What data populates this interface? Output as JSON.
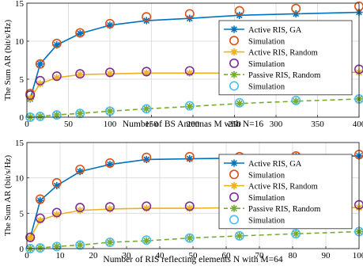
{
  "chart_data": [
    {
      "type": "line",
      "xlabel": "Number of BS Antennas M with N=16",
      "ylabel": "The Sum AR (bit/s/Hz)",
      "xlim": [
        0,
        400
      ],
      "ylim": [
        0,
        15
      ],
      "xticks": [
        0,
        50,
        100,
        150,
        200,
        250,
        300,
        350,
        400
      ],
      "yticks": [
        0,
        5,
        10,
        15
      ],
      "grid": true,
      "legend_position": "right",
      "series": [
        {
          "name": "Active RIS, GA",
          "color": "#0072BD",
          "marker": "asterisk",
          "style": "solid",
          "x": [
            4,
            16,
            36,
            64,
            100,
            144,
            196,
            256,
            324,
            400
          ],
          "y": [
            2.4,
            7.0,
            9.5,
            11.0,
            12.1,
            12.7,
            13.0,
            13.4,
            13.6,
            13.8
          ]
        },
        {
          "name": "Simulation",
          "color": "#D95319",
          "marker": "circle",
          "style": "none",
          "x": [
            4,
            16,
            36,
            64,
            100,
            144,
            196,
            256,
            324,
            400
          ],
          "y": [
            3.1,
            7.0,
            9.7,
            11.1,
            12.3,
            13.2,
            13.6,
            14.0,
            14.3,
            14.6
          ]
        },
        {
          "name": "Active RIS, Random",
          "color": "#EDB120",
          "marker": "asterisk",
          "style": "solid",
          "x": [
            4,
            16,
            36,
            64,
            100,
            144,
            196,
            256,
            324,
            400
          ],
          "y": [
            2.5,
            4.4,
            5.2,
            5.6,
            5.7,
            5.8,
            5.8,
            5.8,
            5.9,
            5.9
          ]
        },
        {
          "name": "Simulation",
          "color": "#7E2F8E",
          "marker": "circle",
          "style": "none",
          "x": [
            4,
            16,
            36,
            64,
            100,
            144,
            196,
            256,
            324,
            400
          ],
          "y": [
            2.9,
            4.8,
            5.4,
            5.7,
            5.9,
            6.0,
            6.1,
            6.1,
            6.2,
            6.3
          ]
        },
        {
          "name": "Passive RIS, Random",
          "color": "#77AC30",
          "marker": "asterisk",
          "style": "dashed",
          "x": [
            4,
            16,
            36,
            64,
            100,
            144,
            196,
            256,
            324,
            400
          ],
          "y": [
            0.0,
            0.1,
            0.3,
            0.5,
            0.8,
            1.1,
            1.4,
            1.8,
            2.1,
            2.4
          ]
        },
        {
          "name": "Simulation",
          "color": "#4DBEEE",
          "marker": "circle",
          "style": "none",
          "x": [
            4,
            16,
            36,
            64,
            100,
            144,
            196,
            256,
            324,
            400
          ],
          "y": [
            0.0,
            0.1,
            0.3,
            0.5,
            0.8,
            1.1,
            1.5,
            1.9,
            2.2,
            2.4
          ]
        }
      ]
    },
    {
      "type": "line",
      "xlabel": "Number of RIS reflecting elements N with M=64",
      "ylabel": "The Sum AR (bit/s/Hz)",
      "xlim": [
        0,
        100
      ],
      "ylim": [
        0,
        15
      ],
      "xticks": [
        0,
        10,
        20,
        30,
        40,
        50,
        60,
        70,
        80,
        90,
        100
      ],
      "yticks": [
        0,
        5,
        10,
        15
      ],
      "grid": true,
      "legend_position": "right",
      "series": [
        {
          "name": "Active RIS, GA",
          "color": "#0072BD",
          "marker": "asterisk",
          "style": "solid",
          "x": [
            1,
            4,
            9,
            16,
            25,
            36,
            49,
            64,
            81,
            100
          ],
          "y": [
            1.5,
            6.8,
            8.9,
            10.9,
            11.9,
            12.6,
            12.7,
            12.8,
            13.0,
            13.1
          ]
        },
        {
          "name": "Simulation",
          "color": "#D95319",
          "marker": "circle",
          "style": "none",
          "x": [
            1,
            4,
            9,
            16,
            25,
            36,
            49,
            64,
            81,
            100
          ],
          "y": [
            1.6,
            7.0,
            9.3,
            11.2,
            12.1,
            12.9,
            13.0,
            13.0,
            13.1,
            13.3
          ]
        },
        {
          "name": "Active RIS, Random",
          "color": "#EDB120",
          "marker": "asterisk",
          "style": "solid",
          "x": [
            1,
            4,
            9,
            16,
            25,
            36,
            49,
            64,
            81,
            100
          ],
          "y": [
            1.5,
            4.0,
            4.8,
            5.4,
            5.6,
            5.7,
            5.7,
            5.8,
            5.8,
            5.8
          ]
        },
        {
          "name": "Simulation",
          "color": "#7E2F8E",
          "marker": "circle",
          "style": "none",
          "x": [
            1,
            4,
            9,
            16,
            25,
            36,
            49,
            64,
            81,
            100
          ],
          "y": [
            1.6,
            4.3,
            5.1,
            5.8,
            5.9,
            6.0,
            6.0,
            6.1,
            6.1,
            6.2
          ]
        },
        {
          "name": "Passive RIS, Random",
          "color": "#77AC30",
          "marker": "asterisk",
          "style": "dashed",
          "x": [
            1,
            4,
            9,
            16,
            25,
            36,
            49,
            64,
            81,
            100
          ],
          "y": [
            0.0,
            0.1,
            0.3,
            0.5,
            0.9,
            1.1,
            1.5,
            1.8,
            2.1,
            2.4
          ]
        },
        {
          "name": "Simulation",
          "color": "#4DBEEE",
          "marker": "circle",
          "style": "none",
          "x": [
            1,
            4,
            9,
            16,
            25,
            36,
            49,
            64,
            81,
            100
          ],
          "y": [
            0.0,
            0.1,
            0.3,
            0.5,
            0.9,
            1.2,
            1.5,
            1.8,
            2.1,
            2.4
          ]
        }
      ]
    }
  ]
}
